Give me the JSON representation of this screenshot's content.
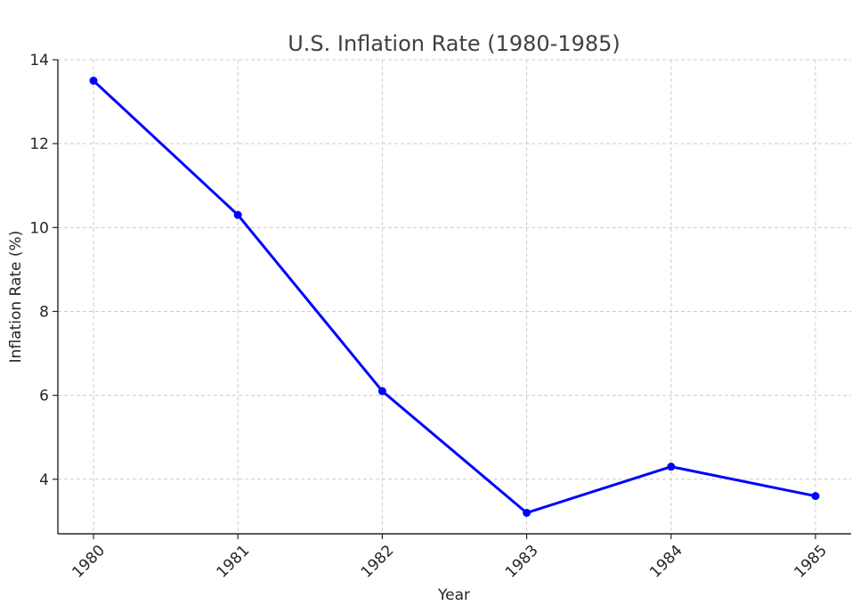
{
  "chart_data": {
    "type": "line",
    "title": "U.S. Inflation Rate (1980-1985)",
    "xlabel": "Year",
    "ylabel": "Inflation Rate (%)",
    "x": [
      "1980",
      "1981",
      "1982",
      "1983",
      "1984",
      "1985"
    ],
    "series": [
      {
        "values": [
          13.5,
          10.3,
          6.1,
          3.2,
          4.3,
          3.6
        ],
        "color": "#0000ff",
        "marker": "circle"
      }
    ],
    "yticks": [
      4,
      6,
      8,
      10,
      12,
      14
    ],
    "ylim": [
      2.7,
      14
    ],
    "grid": true,
    "x_tick_rotation": "45 degrees counter-clockwise"
  }
}
